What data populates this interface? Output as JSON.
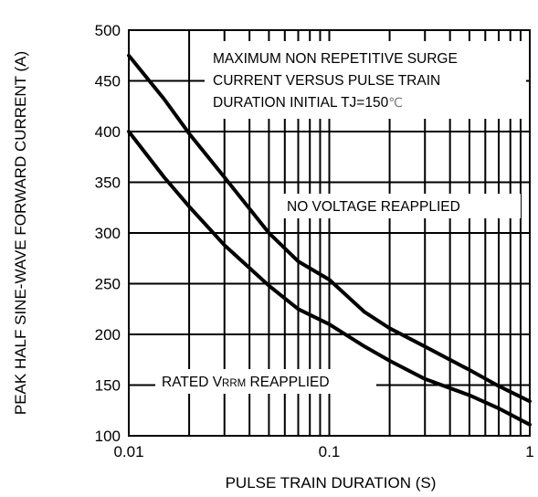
{
  "chart_data": {
    "type": "line",
    "title": "",
    "xlabel": "PULSE TRAIN DURATION (S)",
    "ylabel": "PEAK HALF SINE-WAVE FORWARD CURRENT (A)",
    "x_scale": "log",
    "xlim": [
      0.01,
      1
    ],
    "ylim": [
      100,
      500
    ],
    "grid": true,
    "x_ticks": [
      0.01,
      0.1,
      1
    ],
    "x_tick_labels": [
      "0.01",
      "0.1",
      "1"
    ],
    "y_ticks": [
      100,
      150,
      200,
      250,
      300,
      350,
      400,
      450,
      500
    ],
    "y_tick_labels": [
      "100",
      "150",
      "200",
      "250",
      "300",
      "350",
      "400",
      "450",
      "500"
    ],
    "annotations": {
      "title_box": [
        "MAXIMUM NON REPETITIVE SURGE",
        "CURRENT VERSUS PULSE TRAIN",
        "DURATION INITIAL TJ=150"
      ],
      "title_box_unit": "℃",
      "upper_curve_label": "NO VOLTAGE REAPPLIED",
      "lower_curve_label_prefix": "RATED V",
      "lower_curve_label_sub": "RRM",
      "lower_curve_label_suffix": " REAPPLIED"
    },
    "series": [
      {
        "name": "",
        "color": "#000000",
        "x": [
          0.01,
          0.015,
          0.02,
          0.03,
          0.05,
          0.07,
          0.1,
          0.15,
          0.2,
          0.3,
          0.5,
          0.7,
          1.0
        ],
        "y": [
          475,
          432,
          398,
          355,
          300,
          272,
          254,
          222,
          206,
          188,
          165,
          149,
          134
        ]
      },
      {
        "name": "",
        "color": "#000000",
        "x": [
          0.01,
          0.015,
          0.02,
          0.03,
          0.05,
          0.07,
          0.1,
          0.15,
          0.2,
          0.3,
          0.5,
          0.7,
          1.0
        ],
        "y": [
          400,
          355,
          326,
          288,
          248,
          225,
          210,
          188,
          174,
          156,
          140,
          127,
          111
        ]
      }
    ]
  }
}
